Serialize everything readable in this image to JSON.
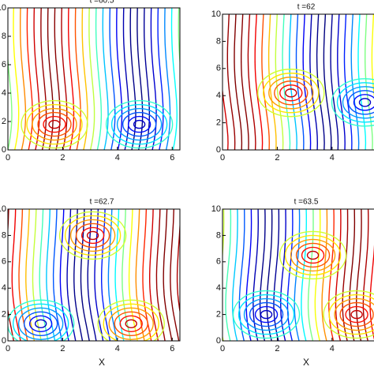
{
  "chart_data": [
    {
      "type": "contour",
      "title": "t =60.5",
      "xlim": [
        0,
        6.28
      ],
      "ylim": [
        0,
        10
      ],
      "xticks": [
        0,
        2,
        4,
        6
      ],
      "yticks": [
        0,
        2,
        4,
        6,
        8,
        10
      ]
    },
    {
      "type": "contour",
      "title": "t =62",
      "xlim": [
        0,
        6.28
      ],
      "ylim": [
        0,
        10
      ],
      "xticks": [
        0,
        2,
        4
      ],
      "yticks": [
        0,
        2,
        4,
        6,
        8,
        10
      ]
    },
    {
      "type": "contour",
      "title": "t =62.7",
      "xlabel": "X",
      "xlim": [
        0,
        6.28
      ],
      "ylim": [
        0,
        10
      ],
      "xticks": [
        0,
        2,
        4,
        6
      ],
      "yticks": [
        0,
        2,
        4,
        6,
        8,
        10
      ]
    },
    {
      "type": "contour",
      "title": "t =63.5",
      "xlabel": "X",
      "xlim": [
        0,
        6.28
      ],
      "ylim": [
        0,
        10
      ],
      "xticks": [
        0,
        2,
        4
      ],
      "yticks": [
        0,
        2,
        4,
        6,
        8,
        10
      ]
    }
  ]
}
